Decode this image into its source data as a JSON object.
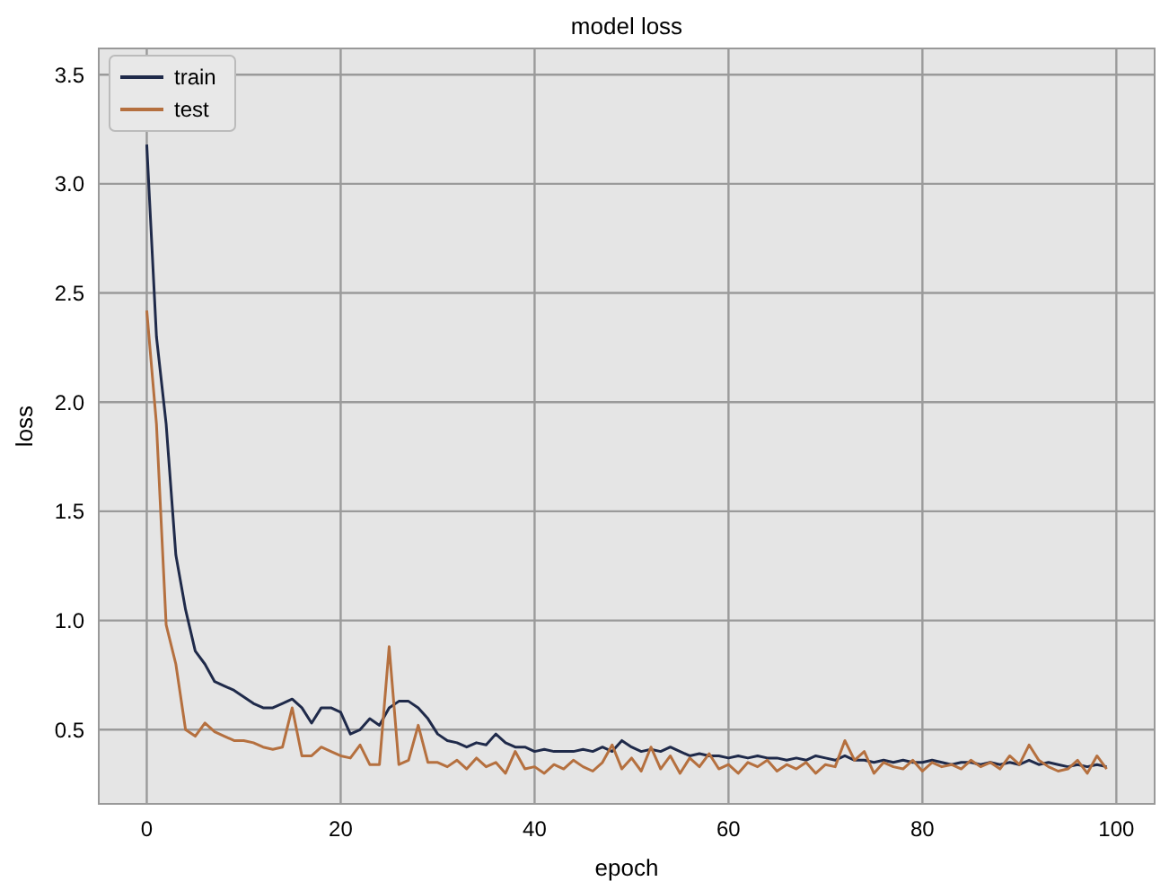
{
  "chart_data": {
    "type": "line",
    "title": "model loss",
    "xlabel": "epoch",
    "ylabel": "loss",
    "x": [
      0,
      1,
      2,
      3,
      4,
      5,
      6,
      7,
      8,
      9,
      10,
      11,
      12,
      13,
      14,
      15,
      16,
      17,
      18,
      19,
      20,
      21,
      22,
      23,
      24,
      25,
      26,
      27,
      28,
      29,
      30,
      31,
      32,
      33,
      34,
      35,
      36,
      37,
      38,
      39,
      40,
      41,
      42,
      43,
      44,
      45,
      46,
      47,
      48,
      49,
      50,
      51,
      52,
      53,
      54,
      55,
      56,
      57,
      58,
      59,
      60,
      61,
      62,
      63,
      64,
      65,
      66,
      67,
      68,
      69,
      70,
      71,
      72,
      73,
      74,
      75,
      76,
      77,
      78,
      79,
      80,
      81,
      82,
      83,
      84,
      85,
      86,
      87,
      88,
      89,
      90,
      91,
      92,
      93,
      94,
      95,
      96,
      97,
      98,
      99
    ],
    "series": [
      {
        "name": "train",
        "color": "#1f2a4a",
        "values": [
          3.18,
          2.3,
          1.9,
          1.3,
          1.05,
          0.86,
          0.8,
          0.72,
          0.7,
          0.68,
          0.65,
          0.62,
          0.6,
          0.6,
          0.62,
          0.64,
          0.6,
          0.53,
          0.6,
          0.6,
          0.58,
          0.48,
          0.5,
          0.55,
          0.52,
          0.6,
          0.63,
          0.63,
          0.6,
          0.55,
          0.48,
          0.45,
          0.44,
          0.42,
          0.44,
          0.43,
          0.48,
          0.44,
          0.42,
          0.42,
          0.4,
          0.41,
          0.4,
          0.4,
          0.4,
          0.41,
          0.4,
          0.42,
          0.4,
          0.45,
          0.42,
          0.4,
          0.41,
          0.4,
          0.42,
          0.4,
          0.38,
          0.39,
          0.38,
          0.38,
          0.37,
          0.38,
          0.37,
          0.38,
          0.37,
          0.37,
          0.36,
          0.37,
          0.36,
          0.38,
          0.37,
          0.36,
          0.38,
          0.36,
          0.36,
          0.35,
          0.36,
          0.35,
          0.36,
          0.35,
          0.35,
          0.36,
          0.35,
          0.34,
          0.35,
          0.35,
          0.34,
          0.35,
          0.34,
          0.35,
          0.34,
          0.36,
          0.34,
          0.35,
          0.34,
          0.33,
          0.34,
          0.33,
          0.34,
          0.33
        ]
      },
      {
        "name": "test",
        "color": "#b5703f",
        "values": [
          2.42,
          1.9,
          0.98,
          0.8,
          0.5,
          0.47,
          0.53,
          0.49,
          0.47,
          0.45,
          0.45,
          0.44,
          0.42,
          0.41,
          0.42,
          0.6,
          0.38,
          0.38,
          0.42,
          0.4,
          0.38,
          0.37,
          0.43,
          0.34,
          0.34,
          0.88,
          0.34,
          0.36,
          0.52,
          0.35,
          0.35,
          0.33,
          0.36,
          0.32,
          0.37,
          0.33,
          0.35,
          0.3,
          0.4,
          0.32,
          0.33,
          0.3,
          0.34,
          0.32,
          0.36,
          0.33,
          0.31,
          0.35,
          0.43,
          0.32,
          0.37,
          0.31,
          0.42,
          0.32,
          0.38,
          0.3,
          0.37,
          0.33,
          0.39,
          0.32,
          0.34,
          0.3,
          0.35,
          0.33,
          0.36,
          0.31,
          0.34,
          0.32,
          0.35,
          0.3,
          0.34,
          0.33,
          0.45,
          0.36,
          0.4,
          0.3,
          0.35,
          0.33,
          0.32,
          0.36,
          0.31,
          0.35,
          0.33,
          0.34,
          0.32,
          0.36,
          0.33,
          0.35,
          0.32,
          0.38,
          0.34,
          0.43,
          0.36,
          0.33,
          0.31,
          0.32,
          0.36,
          0.3,
          0.38,
          0.32
        ]
      }
    ],
    "xlim": [
      -4.95,
      103.95
    ],
    "ylim": [
      0.16,
      3.62
    ],
    "xticks": [
      0,
      20,
      40,
      60,
      80,
      100
    ],
    "yticks": [
      0.5,
      {
        "value": 1,
        "label": "1.0"
      },
      1.5,
      {
        "value": 2,
        "label": "2.0"
      },
      2.5,
      {
        "value": 3,
        "label": "3.0"
      },
      3.5
    ],
    "grid": true,
    "legend": "top left",
    "marker": "none",
    "line_style": "solid"
  }
}
